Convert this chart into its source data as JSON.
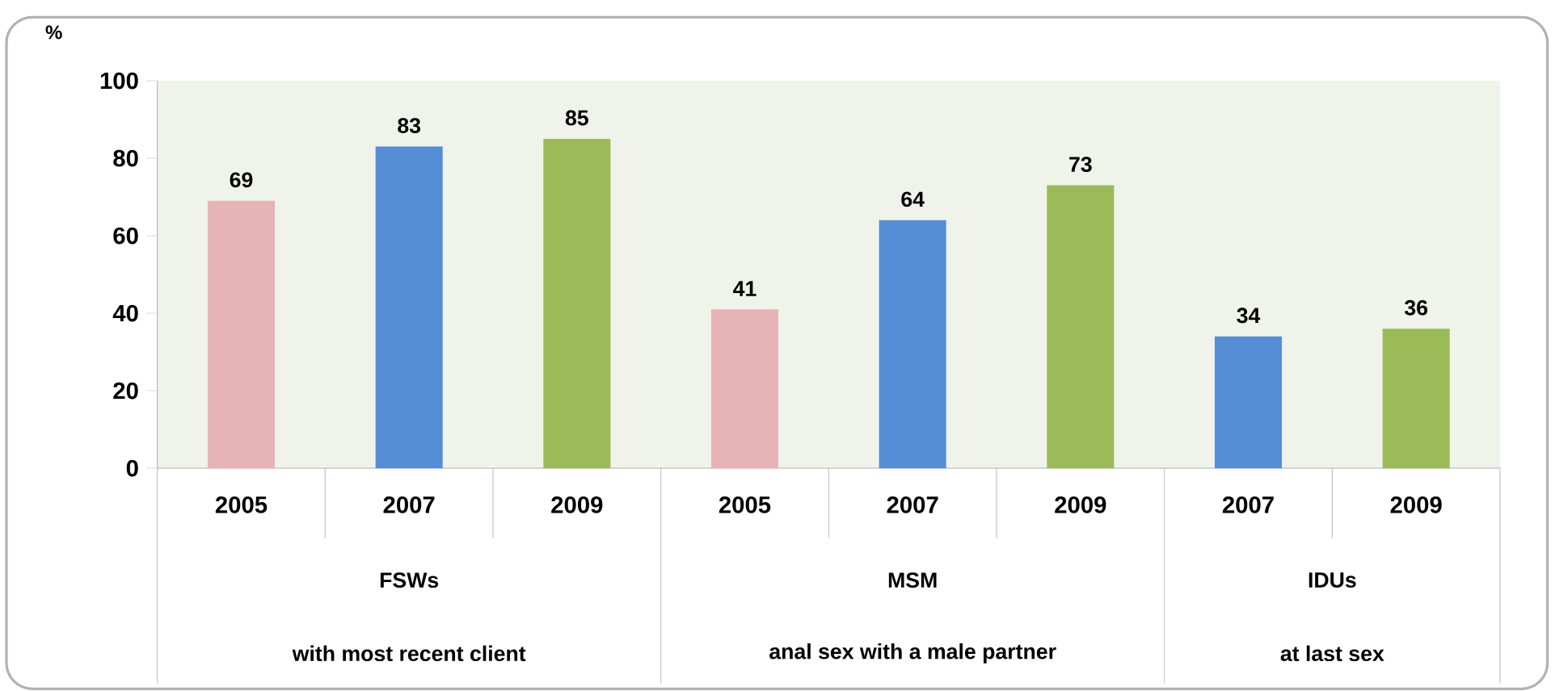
{
  "chart_data": {
    "type": "bar",
    "ylabel": "%",
    "categories": [
      "2005",
      "2007",
      "2009",
      "2005",
      "2007",
      "2009",
      "2007",
      "2009"
    ],
    "values": [
      69,
      83,
      85,
      41,
      64,
      73,
      34,
      36
    ],
    "colors": [
      "#e6b3b6",
      "#558ed5",
      "#9bbb59",
      "#e6b3b6",
      "#558ed5",
      "#9bbb59",
      "#558ed5",
      "#9bbb59"
    ],
    "ylim": [
      0,
      100
    ],
    "yticks": [
      0,
      20,
      40,
      60,
      80,
      100
    ],
    "data_labels": true,
    "grid": false,
    "annotations": [
      "FSWs",
      "with most recent client",
      "MSM",
      "anal sex with a male partner",
      "IDUs",
      "at last sex"
    ]
  }
}
